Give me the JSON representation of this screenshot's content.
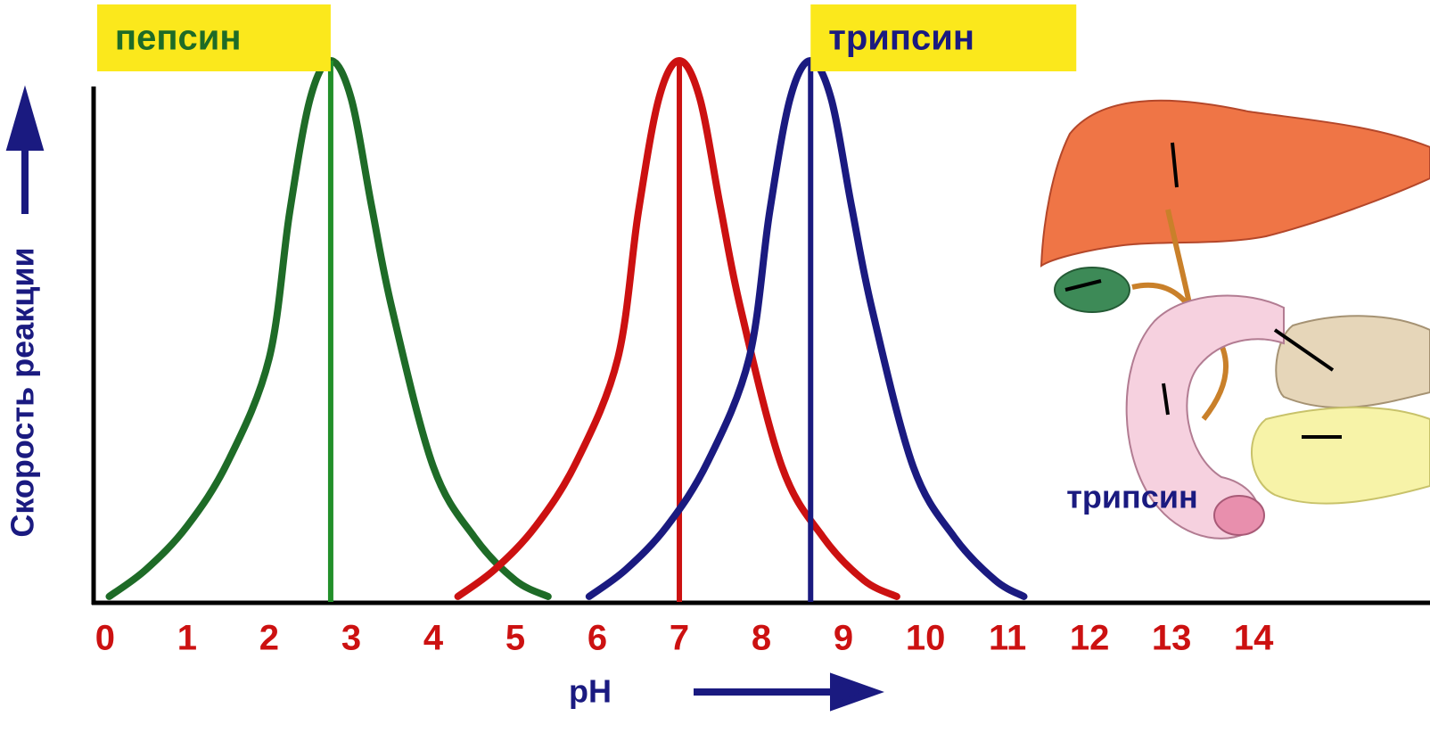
{
  "chart_data": {
    "type": "line",
    "x_label": "pH",
    "y_label": "Скорость реакции",
    "xlim": [
      -0.14,
      16.15
    ],
    "xticks": [
      0,
      1,
      2,
      3,
      4,
      5,
      6,
      7,
      8,
      9,
      10,
      11,
      12,
      13,
      14
    ],
    "ylim": [
      0,
      100
    ],
    "annotation": "трипсин",
    "series": [
      {
        "name": "пепсин",
        "color": "#1e6b27",
        "peak_color": "#22902a",
        "x": [
          0.05,
          0.5,
          1,
          1.5,
          2,
          2.25,
          2.5,
          2.75,
          3,
          3.25,
          3.5,
          4,
          4.5,
          5,
          5.4
        ],
        "values": [
          1,
          6,
          14,
          26,
          45,
          72,
          93,
          100,
          93,
          73,
          54,
          25,
          12,
          4,
          1
        ]
      },
      {
        "color": "#cc1111",
        "peak_color": "#cc1111",
        "x": [
          4.3,
          4.75,
          5.25,
          5.75,
          6.25,
          6.5,
          6.75,
          7,
          7.25,
          7.5,
          7.75,
          8.25,
          8.75,
          9.25,
          9.65
        ],
        "values": [
          1,
          6,
          14,
          26,
          45,
          72,
          93,
          100,
          93,
          73,
          54,
          25,
          12,
          4,
          1
        ]
      },
      {
        "name": "трипсин",
        "color": "#1a1a80",
        "peak_color": "#1a1a80",
        "x": [
          5.9,
          6.35,
          6.85,
          7.35,
          7.85,
          8.1,
          8.35,
          8.6,
          8.85,
          9.1,
          9.35,
          9.85,
          10.35,
          10.85,
          11.2
        ],
        "values": [
          1,
          6,
          14,
          26,
          45,
          72,
          93,
          100,
          93,
          73,
          54,
          25,
          12,
          4,
          1
        ]
      }
    ]
  }
}
